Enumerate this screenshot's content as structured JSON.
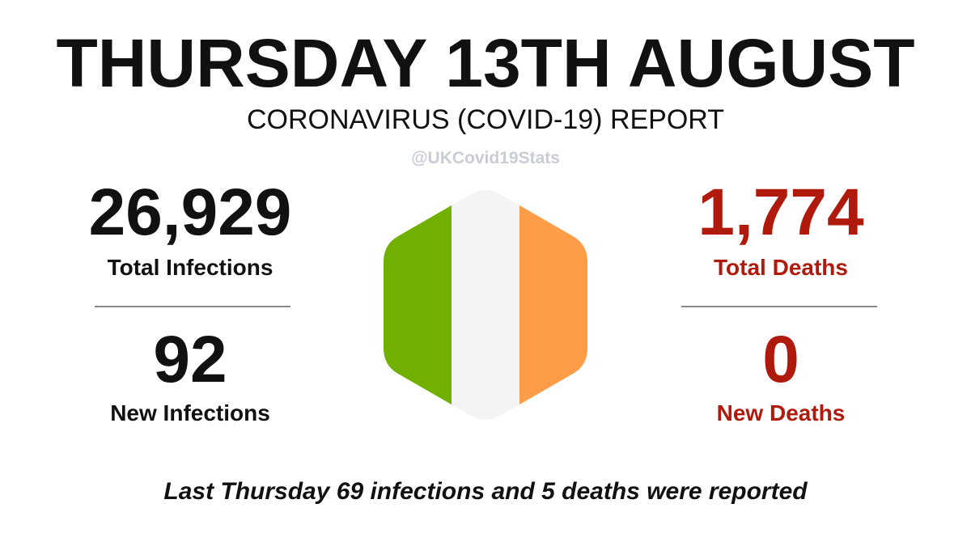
{
  "header": {
    "title": "THURSDAY 13TH AUGUST",
    "subtitle": "CORONAVIRUS (COVID-19) REPORT",
    "handle": "@UKCovid19Stats"
  },
  "stats": {
    "total_infections": {
      "value": "26,929",
      "label": "Total Infections"
    },
    "new_infections": {
      "value": "92",
      "label": "New Infections"
    },
    "total_deaths": {
      "value": "1,774",
      "label": "Total Deaths"
    },
    "new_deaths": {
      "value": "0",
      "label": "New Deaths"
    }
  },
  "flag": {
    "icon": "ireland-flag-hexagon-icon",
    "colors": [
      "#72b000",
      "#f4f4f4",
      "#ff9c47"
    ]
  },
  "footer": {
    "note": "Last Thursday 69 infections and 5 deaths were reported"
  },
  "colors": {
    "text": "#111111",
    "deaths": "#b01a0c",
    "handle": "#c8ccd6",
    "divider": "#8a8a8a"
  }
}
